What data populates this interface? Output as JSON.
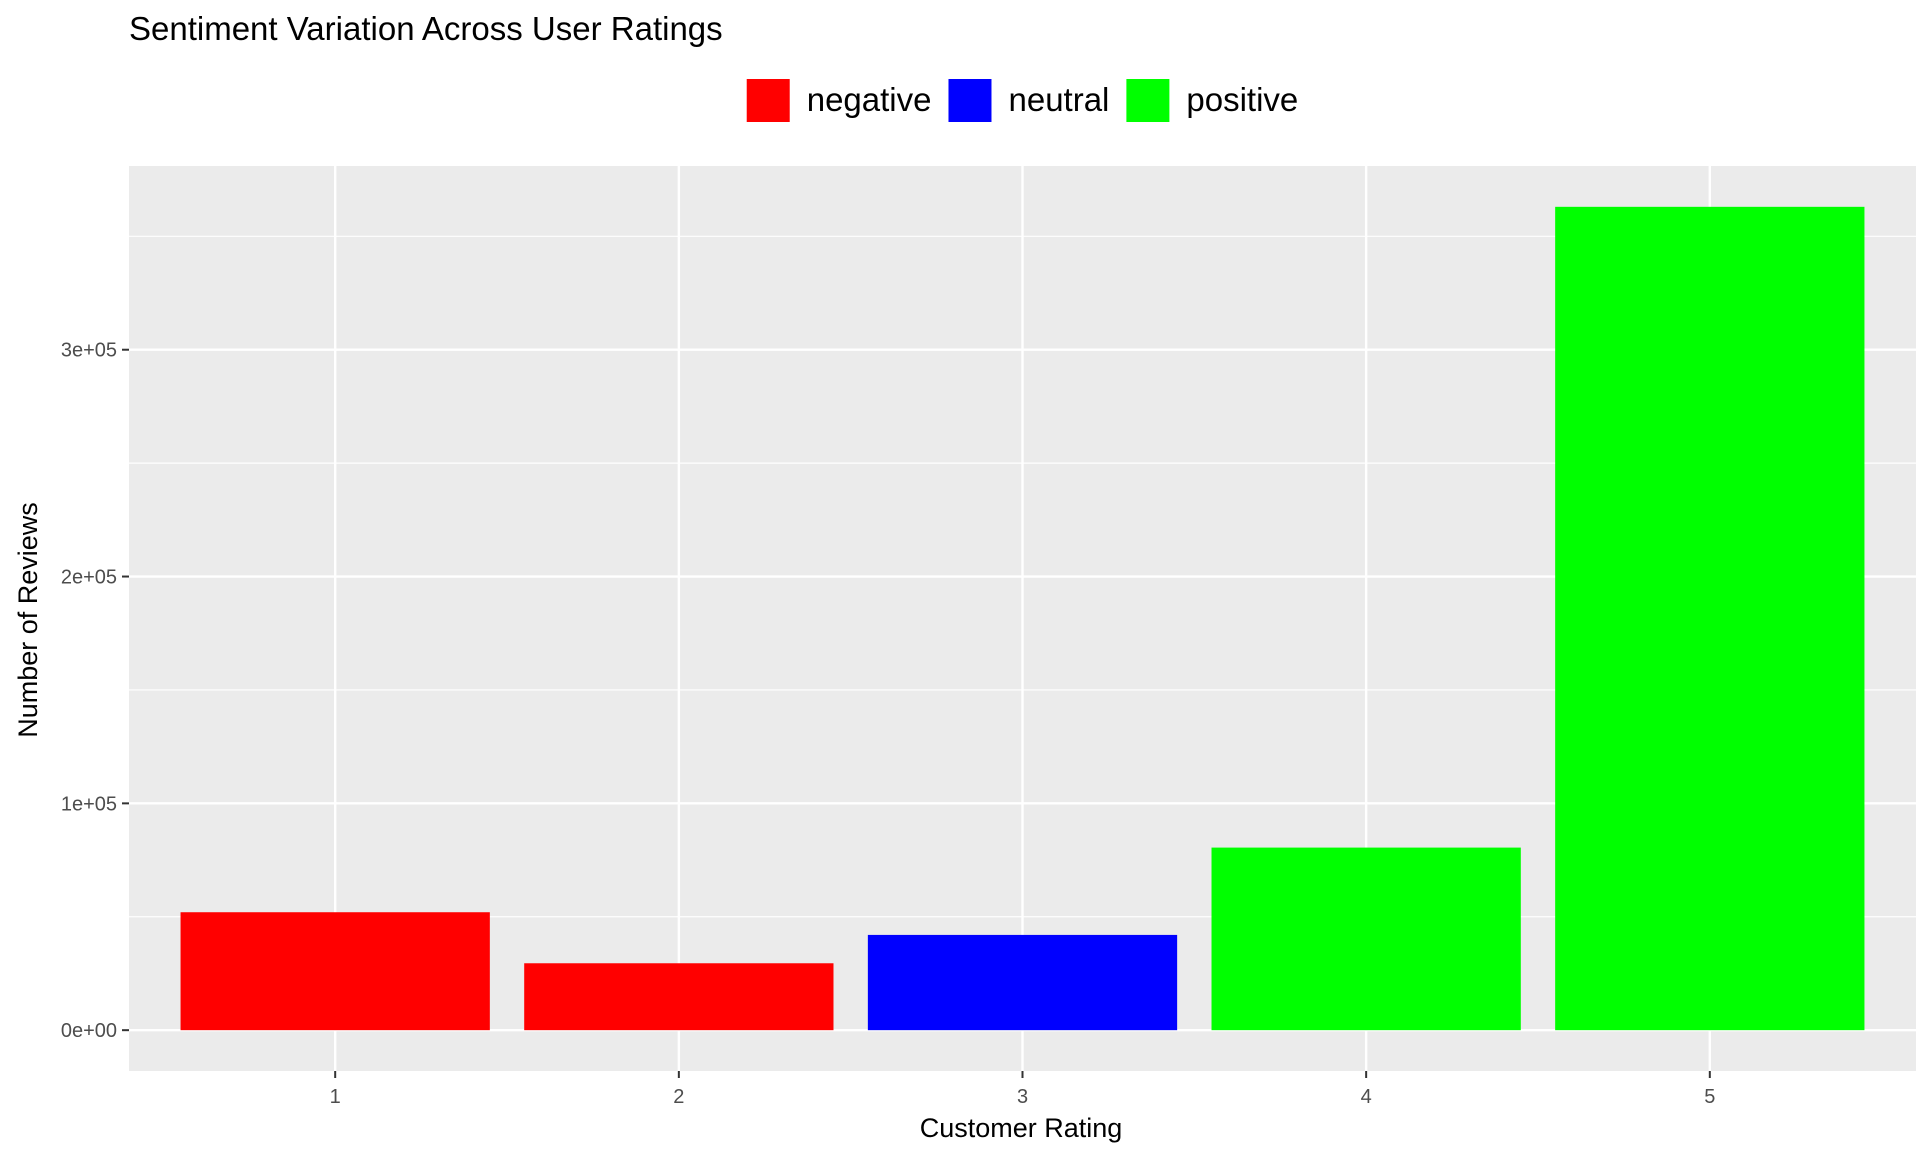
{
  "chart_data": {
    "type": "bar",
    "title": "Sentiment Variation Across User Ratings",
    "xlabel": "Customer Rating",
    "ylabel": "Number of Reviews",
    "categories": [
      "1",
      "2",
      "3",
      "4",
      "5"
    ],
    "values": [
      52000,
      29500,
      42000,
      80500,
      363000
    ],
    "bar_sentiment": [
      "negative",
      "negative",
      "neutral",
      "positive",
      "positive"
    ],
    "ylim": [
      -18000,
      381000
    ],
    "y_ticks": [
      0,
      100000,
      200000,
      300000
    ],
    "y_tick_labels": [
      "0e+00",
      "1e+05",
      "2e+05",
      "3e+05"
    ],
    "grid": true,
    "legend_position": "top",
    "legend": [
      {
        "name": "negative",
        "color": "#FF0000"
      },
      {
        "name": "neutral",
        "color": "#0000FF"
      },
      {
        "name": "positive",
        "color": "#00FF00"
      }
    ],
    "panel_background": "#EBEBEB",
    "grid_color": "#FFFFFF"
  }
}
